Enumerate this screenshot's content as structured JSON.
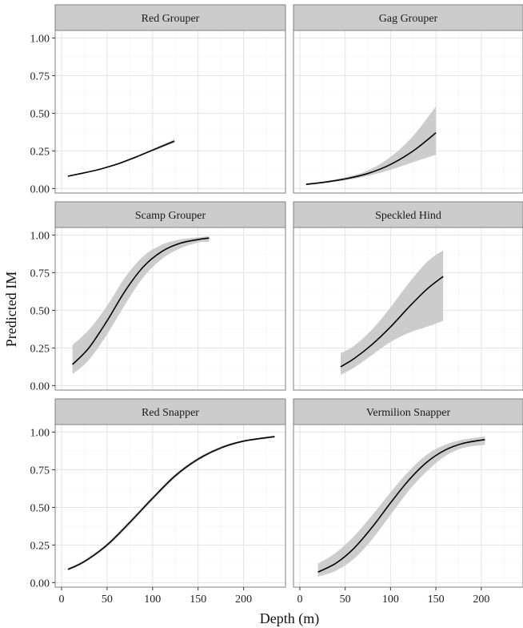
{
  "chart_data": {
    "type": "line",
    "layout": "facet-grid-3x2",
    "xlabel": "Depth (m)",
    "ylabel": "Predicted IM",
    "xlim": [
      -7,
      246
    ],
    "ylim": [
      -0.03,
      1.05
    ],
    "x_ticks": [
      0,
      50,
      100,
      150,
      200
    ],
    "x_tick_labels": [
      "0",
      "50",
      "100",
      "150",
      "200"
    ],
    "y_ticks": [
      0,
      0.25,
      0.5,
      0.75,
      1
    ],
    "y_tick_labels": [
      "0.00",
      "0.25",
      "0.50",
      "0.75",
      "1.00"
    ],
    "grid": true,
    "band": "95% confidence interval (grey ribbon)",
    "colors": {
      "line": "#000000",
      "band": "#cccccc",
      "strip": "#cccccc",
      "grid_major": "#e3e3e3",
      "grid_minor": "#f2f2f2",
      "border": "#7f7f7f"
    },
    "panels": [
      {
        "title": "Red Grouper",
        "x": [
          7,
          20,
          40,
          60,
          80,
          100,
          124
        ],
        "y": [
          0.082,
          0.098,
          0.125,
          0.16,
          0.205,
          0.255,
          0.315
        ],
        "lower": [
          0.08,
          0.095,
          0.121,
          0.155,
          0.198,
          0.247,
          0.303
        ],
        "upper": [
          0.085,
          0.101,
          0.129,
          0.165,
          0.212,
          0.264,
          0.326
        ]
      },
      {
        "title": "Gag Grouper",
        "x": [
          7,
          25,
          50,
          75,
          100,
          125,
          150
        ],
        "y": [
          0.028,
          0.04,
          0.064,
          0.1,
          0.16,
          0.25,
          0.37
        ],
        "lower": [
          0.022,
          0.034,
          0.055,
          0.084,
          0.125,
          0.175,
          0.225
        ],
        "upper": [
          0.034,
          0.047,
          0.074,
          0.12,
          0.21,
          0.35,
          0.545
        ]
      },
      {
        "title": "Scamp Grouper",
        "x": [
          12,
          30,
          50,
          70,
          90,
          110,
          130,
          150,
          162
        ],
        "y": [
          0.14,
          0.25,
          0.43,
          0.63,
          0.79,
          0.89,
          0.945,
          0.97,
          0.98
        ],
        "lower": [
          0.075,
          0.17,
          0.34,
          0.54,
          0.72,
          0.84,
          0.91,
          0.95,
          0.955
        ],
        "upper": [
          0.27,
          0.37,
          0.53,
          0.72,
          0.86,
          0.935,
          0.97,
          0.985,
          0.992
        ]
      },
      {
        "title": "Speckled Hind",
        "x": [
          45,
          60,
          80,
          100,
          120,
          140,
          158
        ],
        "y": [
          0.125,
          0.18,
          0.275,
          0.39,
          0.52,
          0.64,
          0.725
        ],
        "lower": [
          0.07,
          0.12,
          0.205,
          0.29,
          0.35,
          0.39,
          0.43
        ],
        "upper": [
          0.215,
          0.265,
          0.375,
          0.52,
          0.68,
          0.82,
          0.9
        ]
      },
      {
        "title": "Red Snapper",
        "x": [
          7,
          25,
          50,
          75,
          100,
          125,
          150,
          175,
          200,
          234
        ],
        "y": [
          0.088,
          0.14,
          0.25,
          0.4,
          0.56,
          0.71,
          0.82,
          0.895,
          0.94,
          0.97
        ],
        "lower": [
          0.081,
          0.131,
          0.238,
          0.386,
          0.546,
          0.697,
          0.809,
          0.886,
          0.933,
          0.962
        ],
        "upper": [
          0.095,
          0.15,
          0.262,
          0.414,
          0.574,
          0.723,
          0.831,
          0.904,
          0.947,
          0.977
        ]
      },
      {
        "title": "Vermilion Snapper",
        "x": [
          20,
          40,
          60,
          80,
          100,
          120,
          140,
          160,
          180,
          204
        ],
        "y": [
          0.07,
          0.13,
          0.23,
          0.37,
          0.53,
          0.68,
          0.8,
          0.88,
          0.925,
          0.95
        ],
        "lower": [
          0.04,
          0.08,
          0.16,
          0.29,
          0.45,
          0.61,
          0.74,
          0.84,
          0.895,
          0.915
        ],
        "upper": [
          0.125,
          0.2,
          0.31,
          0.45,
          0.6,
          0.74,
          0.85,
          0.915,
          0.95,
          0.97
        ]
      }
    ]
  }
}
